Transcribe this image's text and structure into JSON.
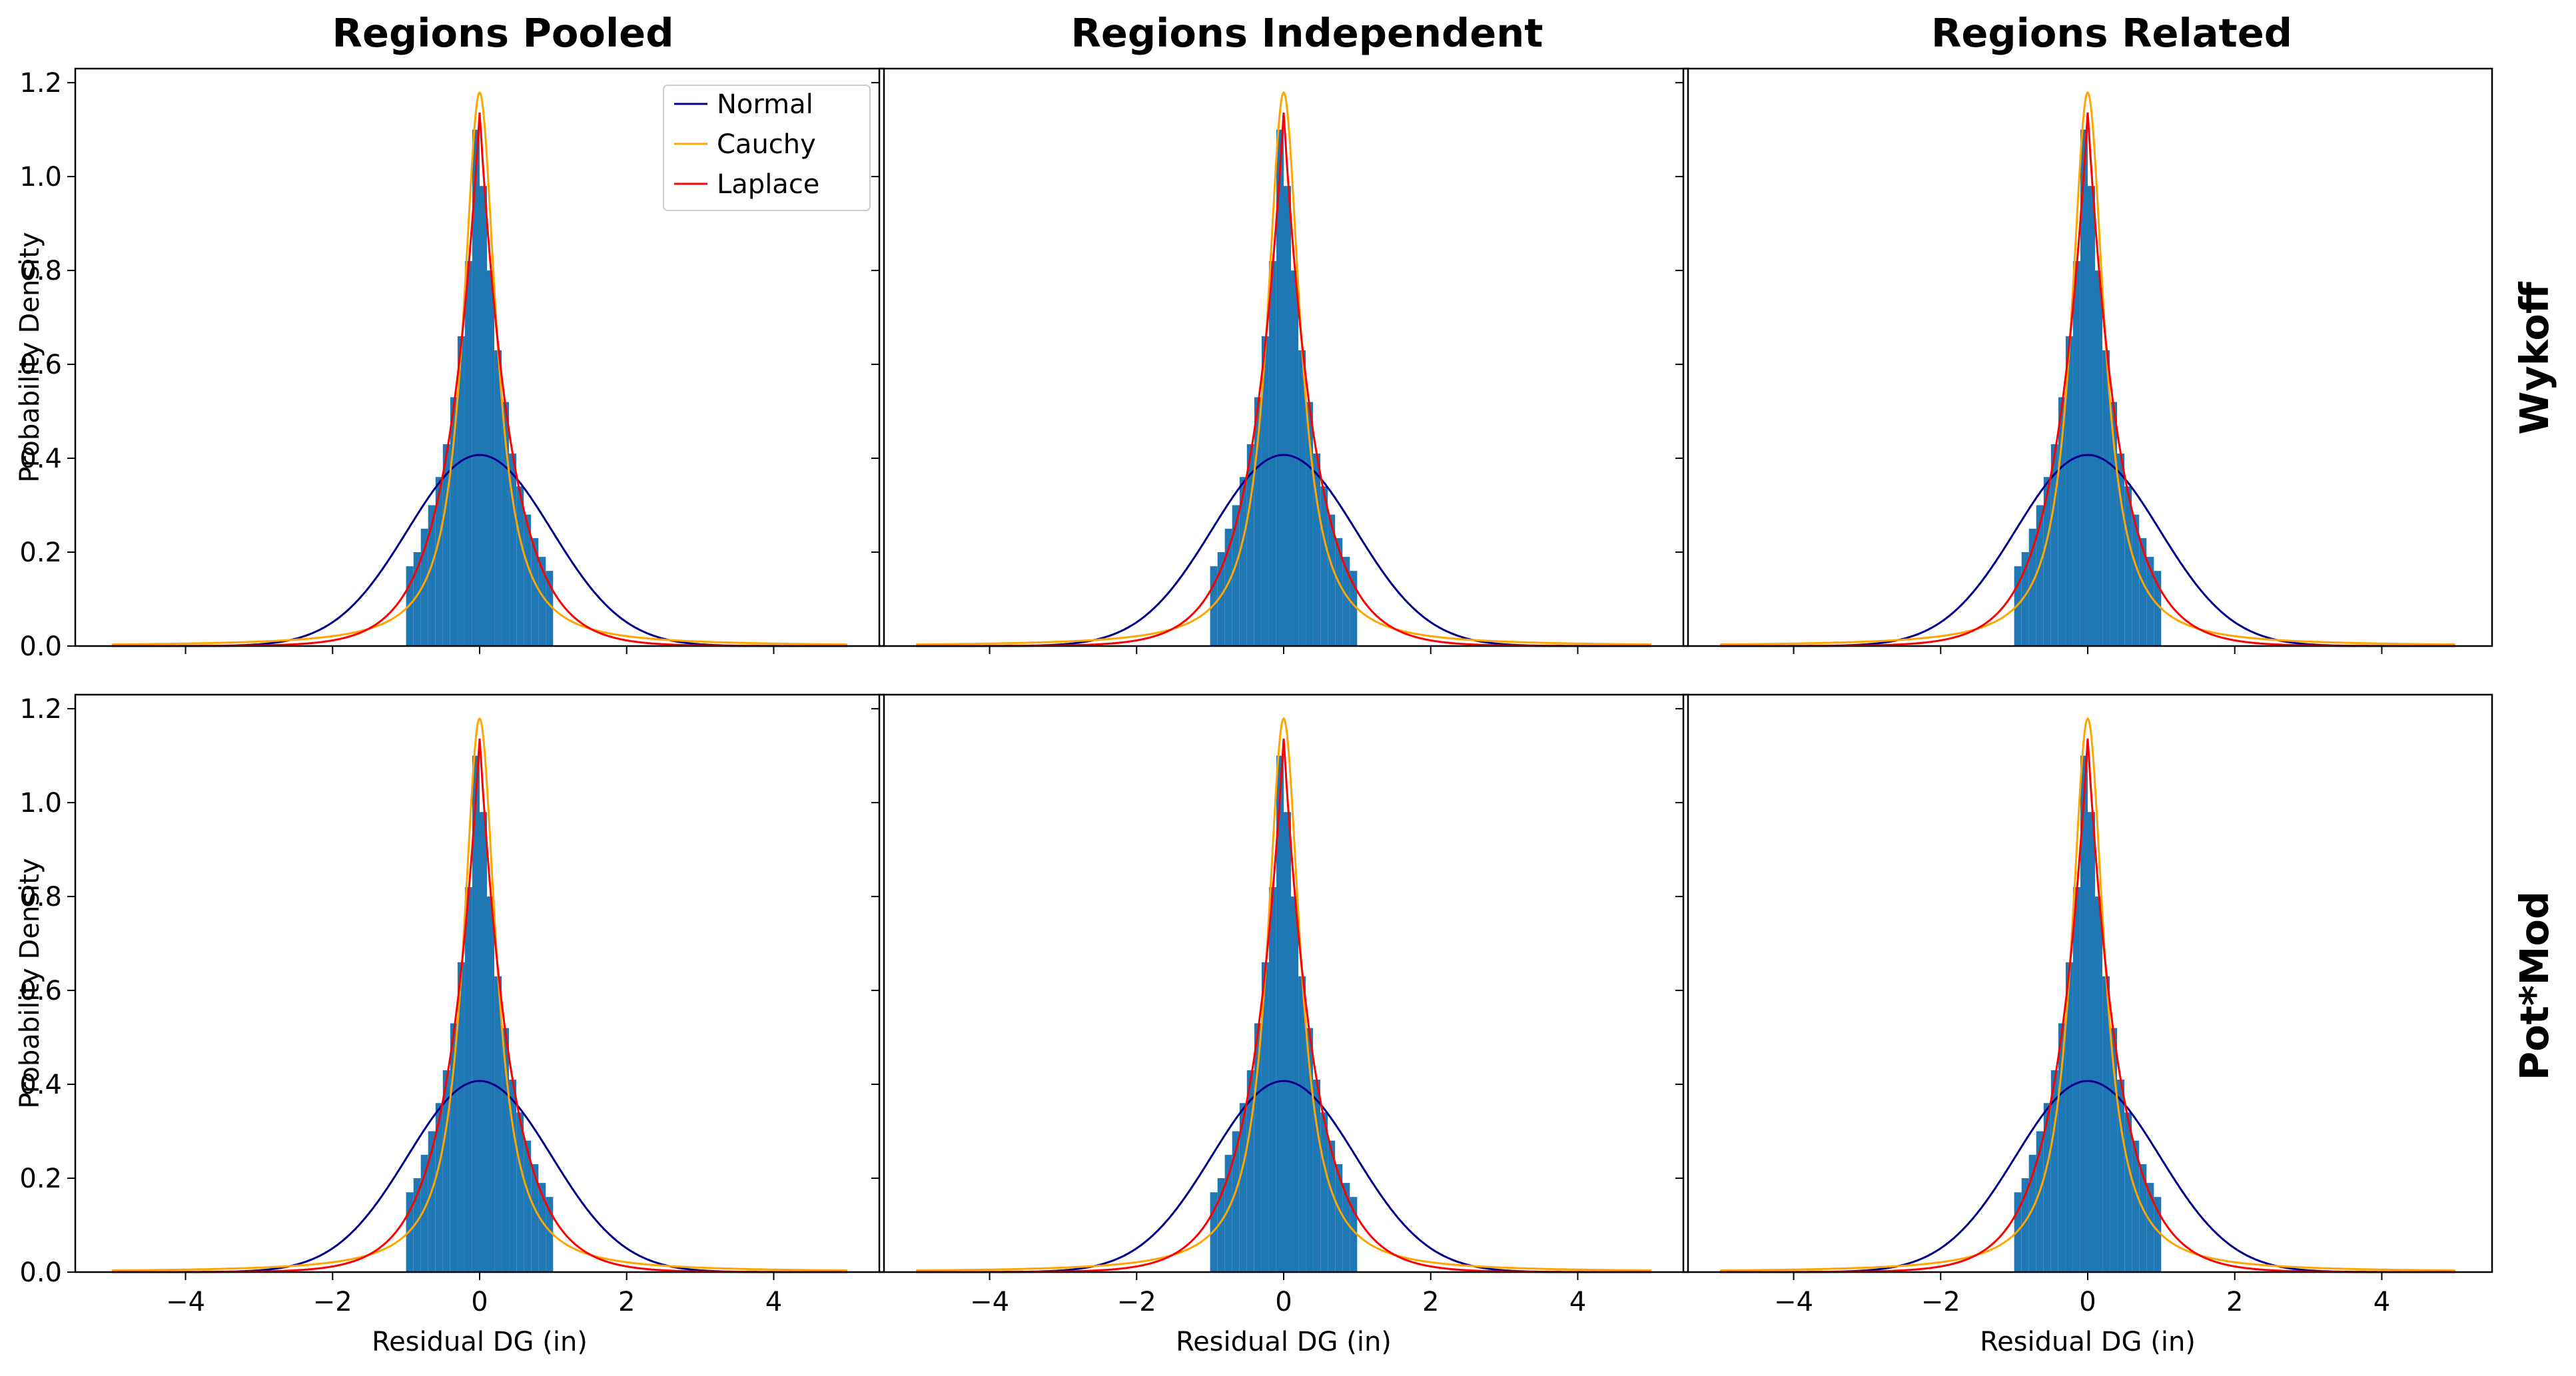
{
  "figure": {
    "column_titles": [
      "Regions Pooled",
      "Regions Independent",
      "Regions Related"
    ],
    "row_titles": [
      "Wykoff",
      "Pot*Mod"
    ],
    "xlabel": "Residual DG (in)",
    "ylabel": "Probability Density"
  },
  "legend": {
    "entries": [
      {
        "label": "Normal",
        "color": "#00008b"
      },
      {
        "label": "Cauchy",
        "color": "#ffa500"
      },
      {
        "label": "Laplace",
        "color": "#ff0000"
      }
    ],
    "placement": "top-right of first panel"
  },
  "colors": {
    "histogram": "#1f77b4",
    "normal": "#00008b",
    "cauchy": "#ffa500",
    "laplace": "#ff0000"
  },
  "chart_data": {
    "type": "histogram-with-density-curves",
    "layout": {
      "rows": 2,
      "cols": 3,
      "sharex": true,
      "sharey": true
    },
    "xlim": [
      -5.5,
      5.5
    ],
    "ylim": [
      0,
      1.23
    ],
    "xticks": [
      -4,
      -2,
      0,
      2,
      4
    ],
    "xtick_labels": [
      "−4",
      "−2",
      "0",
      "2",
      "4"
    ],
    "yticks": [
      0.0,
      0.2,
      0.4,
      0.6,
      0.8,
      1.0,
      1.2
    ],
    "ytick_labels": [
      "0.0",
      "0.2",
      "0.4",
      "0.6",
      "0.8",
      "1.0",
      "1.2"
    ],
    "histogram": {
      "bin_edges": [
        -1.0,
        -0.9,
        -0.8,
        -0.7,
        -0.6,
        -0.5,
        -0.4,
        -0.3,
        -0.2,
        -0.1,
        0.0,
        0.1,
        0.2,
        0.3,
        0.4,
        0.5,
        0.6,
        0.7,
        0.8,
        0.9,
        1.0
      ],
      "densities": [
        0.17,
        0.2,
        0.25,
        0.3,
        0.36,
        0.43,
        0.53,
        0.66,
        0.82,
        1.1,
        0.98,
        0.8,
        0.63,
        0.52,
        0.41,
        0.34,
        0.28,
        0.23,
        0.19,
        0.16
      ]
    },
    "series": [
      {
        "name": "Normal",
        "distribution": "normal",
        "loc": 0.0,
        "scale": 0.98,
        "x_range": [
          -5,
          5
        ],
        "peak": 0.41
      },
      {
        "name": "Cauchy",
        "distribution": "cauchy",
        "loc": 0.0,
        "scale": 0.27,
        "x_range": [
          -5,
          5
        ],
        "peak": 1.17
      },
      {
        "name": "Laplace",
        "distribution": "laplace",
        "loc": 0.0,
        "scale": 0.44,
        "x_range": [
          -5,
          5
        ],
        "peak": 1.13
      }
    ],
    "panels": [
      {
        "row": "Wykoff",
        "col": "Regions Pooled"
      },
      {
        "row": "Wykoff",
        "col": "Regions Independent"
      },
      {
        "row": "Wykoff",
        "col": "Regions Related"
      },
      {
        "row": "Pot*Mod",
        "col": "Regions Pooled"
      },
      {
        "row": "Pot*Mod",
        "col": "Regions Independent"
      },
      {
        "row": "Pot*Mod",
        "col": "Regions Related"
      }
    ]
  }
}
